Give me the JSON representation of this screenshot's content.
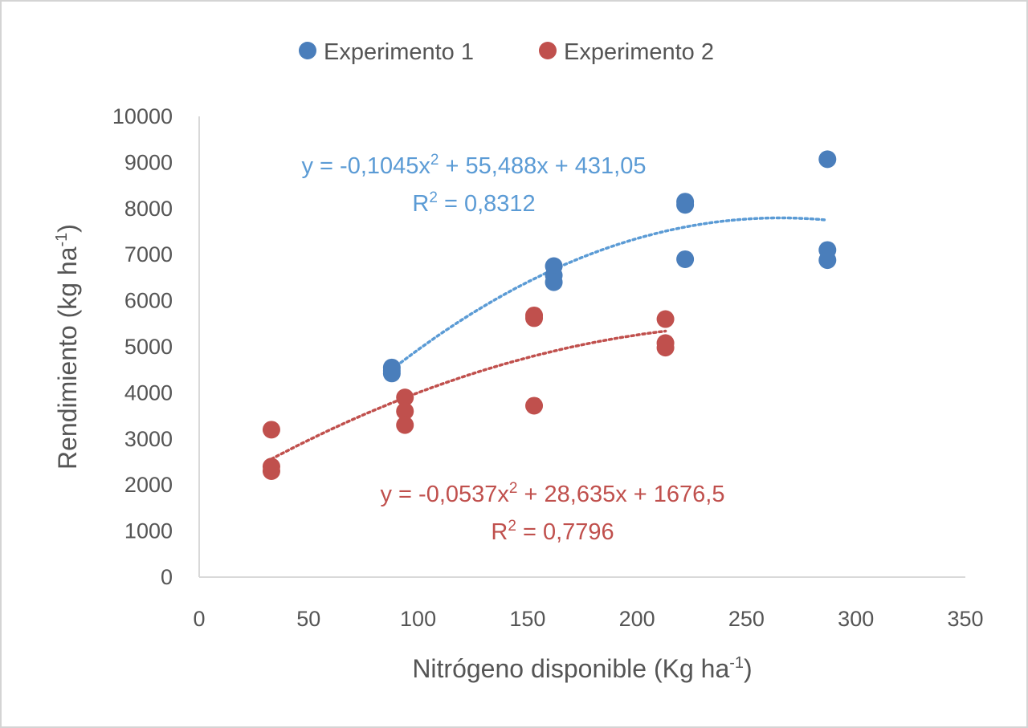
{
  "chart_data": {
    "type": "scatter",
    "title": "",
    "xlabel": "Nitrógeno disponible (Kg ha",
    "xlabel_sup": "-1",
    "xlabel_close": ")",
    "ylabel": "Rendimiento (kg ha",
    "ylabel_sup": "-1",
    "ylabel_close": ")",
    "xlim": [
      0,
      350
    ],
    "ylim": [
      0,
      10000
    ],
    "xticks": [
      0,
      50,
      100,
      150,
      200,
      250,
      300,
      350
    ],
    "yticks": [
      0,
      1000,
      2000,
      3000,
      4000,
      5000,
      6000,
      7000,
      8000,
      9000,
      10000
    ],
    "legend_position": "top",
    "series": [
      {
        "name": "Experimento 1",
        "color": "#4a7ebb",
        "trend_color": "#5b9bd5",
        "points": [
          {
            "x": 88,
            "y": 4550
          },
          {
            "x": 88,
            "y": 4480
          },
          {
            "x": 88,
            "y": 4420
          },
          {
            "x": 162,
            "y": 6750
          },
          {
            "x": 162,
            "y": 6550
          },
          {
            "x": 162,
            "y": 6400
          },
          {
            "x": 222,
            "y": 8150
          },
          {
            "x": 222,
            "y": 8080
          },
          {
            "x": 222,
            "y": 6900
          },
          {
            "x": 287,
            "y": 9070
          },
          {
            "x": 287,
            "y": 7100
          },
          {
            "x": 287,
            "y": 6880
          }
        ],
        "trendline": {
          "type": "polynomial",
          "a": -0.1045,
          "b": 55.488,
          "c": 431.05,
          "x_range": [
            88,
            287
          ]
        },
        "equation": {
          "prefix": "y = -0,1045x",
          "sup": "2",
          "suffix": " + 55,488x + 431,05"
        },
        "r2": {
          "prefix": "R",
          "sup": "2",
          "suffix": " = 0,8312"
        }
      },
      {
        "name": "Experimento 2",
        "color": "#c0504d",
        "trend_color": "#c0504d",
        "points": [
          {
            "x": 33,
            "y": 3200
          },
          {
            "x": 33,
            "y": 2400
          },
          {
            "x": 33,
            "y": 2300
          },
          {
            "x": 94,
            "y": 3900
          },
          {
            "x": 94,
            "y": 3600
          },
          {
            "x": 94,
            "y": 3300
          },
          {
            "x": 153,
            "y": 5680
          },
          {
            "x": 153,
            "y": 5620
          },
          {
            "x": 153,
            "y": 3720
          },
          {
            "x": 213,
            "y": 5600
          },
          {
            "x": 213,
            "y": 5080
          },
          {
            "x": 213,
            "y": 4980
          }
        ],
        "trendline": {
          "type": "polynomial",
          "a": -0.0537,
          "b": 28.635,
          "c": 1676.5,
          "x_range": [
            33,
            213
          ]
        },
        "equation": {
          "prefix": "y = -0,0537x",
          "sup": "2",
          "suffix": " + 28,635x + 1676,5"
        },
        "r2": {
          "prefix": "R",
          "sup": "2",
          "suffix": " = 0,7796"
        }
      }
    ]
  }
}
